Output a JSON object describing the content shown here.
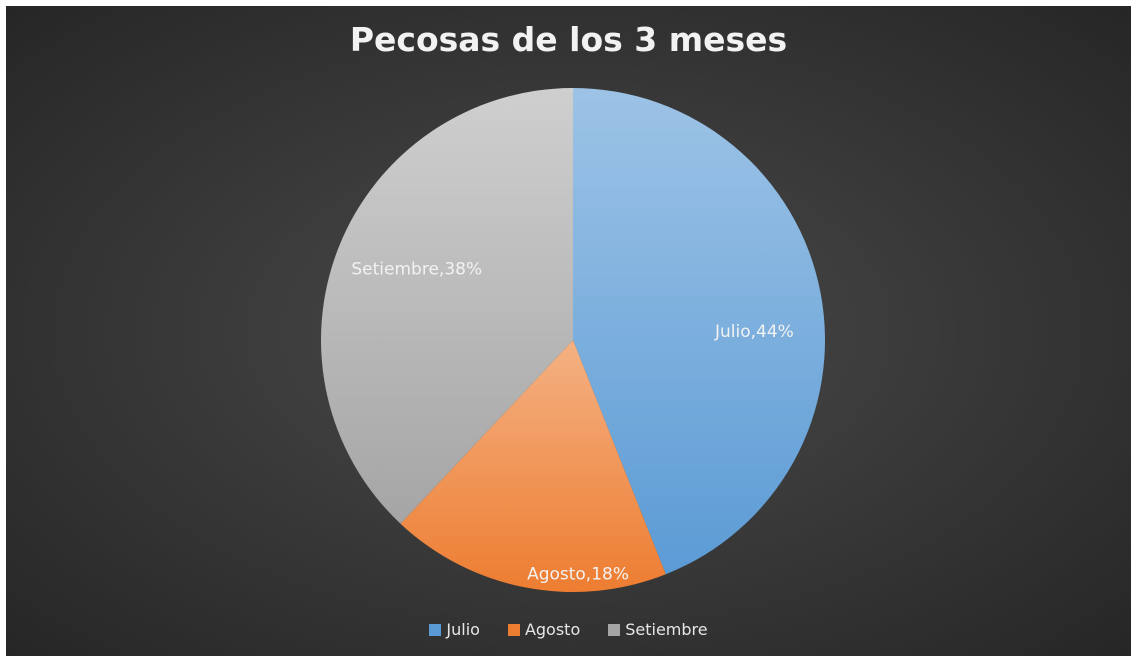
{
  "chart_data": {
    "type": "pie",
    "title": "Pecosas de los 3 meses",
    "categories": [
      "Julio",
      "Agosto",
      "Setiembre"
    ],
    "values": [
      44,
      18,
      38
    ],
    "unit": "%",
    "data_labels": [
      "Julio,44%",
      "Agosto,18%",
      "Setiembre,38%"
    ],
    "colors": [
      "#5b9bd5",
      "#ed7d31",
      "#a5a5a5"
    ],
    "light_colors": [
      "#9dc3e6",
      "#f4b183",
      "#cfcfcf"
    ],
    "legend_position": "bottom"
  }
}
